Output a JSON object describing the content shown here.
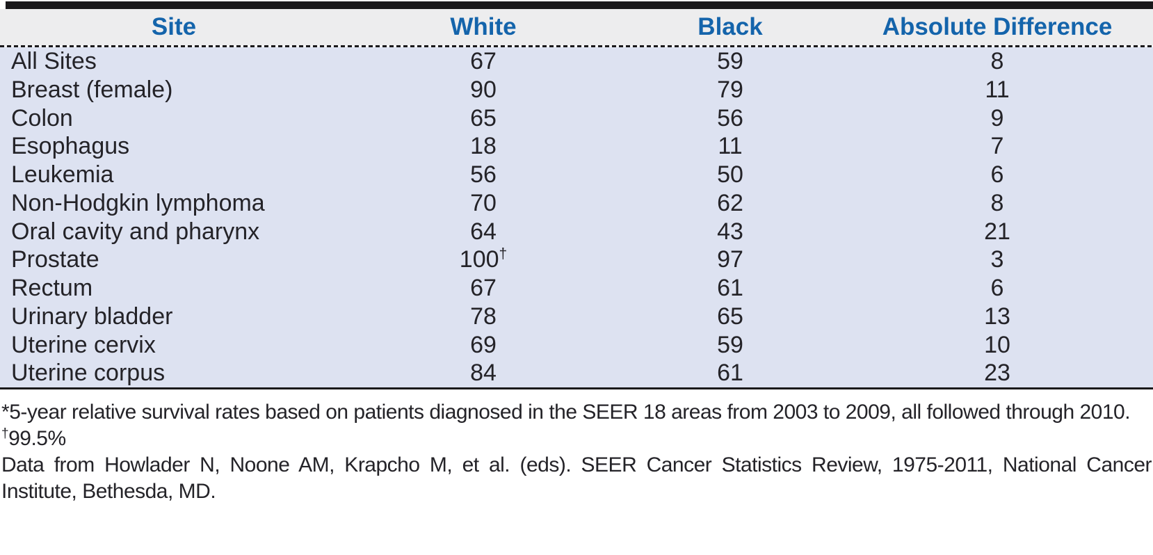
{
  "colors": {
    "header_text": "#1464ab",
    "header_bg": "#ededee",
    "body_bg": "#dde2f1",
    "rule": "#1a191b",
    "text": "#242328"
  },
  "table": {
    "columns": [
      "Site",
      "White",
      "Black",
      "Absolute Difference"
    ],
    "rows": [
      {
        "site": "All Sites",
        "white": "67",
        "white_note": "",
        "black": "59",
        "diff": "8"
      },
      {
        "site": "Breast (female)",
        "white": "90",
        "white_note": "",
        "black": "79",
        "diff": "11"
      },
      {
        "site": "Colon",
        "white": "65",
        "white_note": "",
        "black": "56",
        "diff": "9"
      },
      {
        "site": "Esophagus",
        "white": "18",
        "white_note": "",
        "black": "11",
        "diff": "7"
      },
      {
        "site": "Leukemia",
        "white": "56",
        "white_note": "",
        "black": "50",
        "diff": "6"
      },
      {
        "site": "Non-Hodgkin lymphoma",
        "white": "70",
        "white_note": "",
        "black": "62",
        "diff": "8"
      },
      {
        "site": "Oral cavity and pharynx",
        "white": "64",
        "white_note": "",
        "black": "43",
        "diff": "21"
      },
      {
        "site": "Prostate",
        "white": "100",
        "white_note": "†",
        "black": "97",
        "diff": "3"
      },
      {
        "site": "Rectum",
        "white": "67",
        "white_note": "",
        "black": "61",
        "diff": "6"
      },
      {
        "site": "Urinary bladder",
        "white": "78",
        "white_note": "",
        "black": "65",
        "diff": "13"
      },
      {
        "site": "Uterine cervix",
        "white": "69",
        "white_note": "",
        "black": "59",
        "diff": "10"
      },
      {
        "site": "Uterine corpus",
        "white": "84",
        "white_note": "",
        "black": "61",
        "diff": "23"
      }
    ]
  },
  "footnotes": [
    {
      "marker": "*",
      "text": "5-year relative survival rates based on patients diagnosed in the SEER 18 areas from 2003 to 2009, all followed through 2010."
    },
    {
      "marker": "†",
      "text": "99.5%"
    },
    {
      "marker": "",
      "text": "Data from Howlader N, Noone AM, Krapcho M, et al. (eds). SEER Cancer Statistics Review, 1975-2011, National Cancer Institute, Bethesda, MD."
    }
  ]
}
